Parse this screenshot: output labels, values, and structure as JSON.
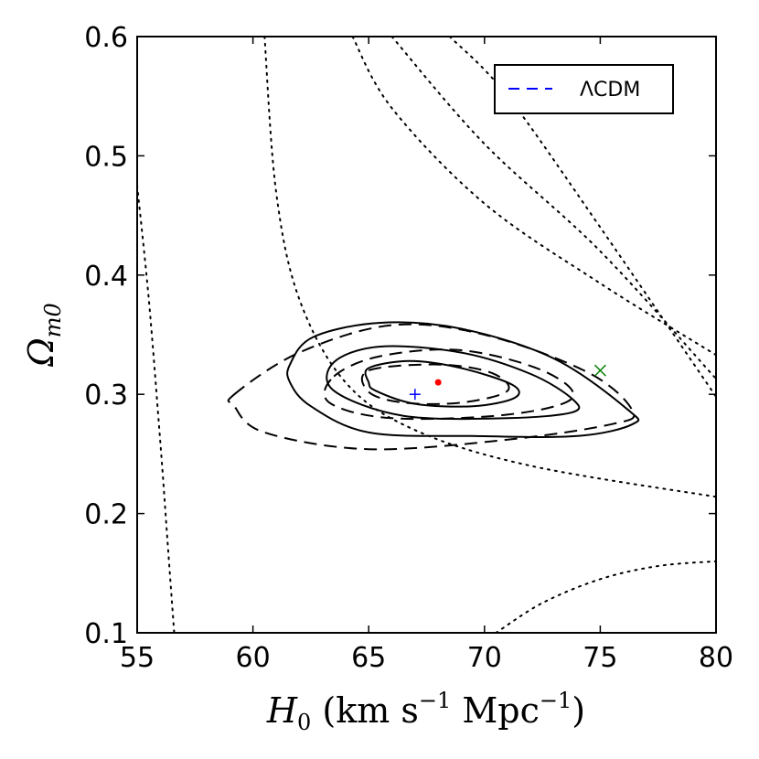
{
  "chart_data": {
    "type": "contour",
    "title": "",
    "xlabel": "H₀ (km s⁻¹ Mpc⁻¹)",
    "ylabel": "Ωₘ₀",
    "xlabel_main": "H",
    "xlabel_sub": "0",
    "xlabel_units": " (km s",
    "xlabel_exp1": "−1",
    "xlabel_mid": " Mpc",
    "xlabel_exp2": "−1",
    "xlabel_close": ")",
    "ylabel_main": "Ω",
    "ylabel_sub": "m0",
    "xlim": [
      55,
      80
    ],
    "ylim": [
      0.1,
      0.6
    ],
    "xticks": [
      55,
      60,
      65,
      70,
      75,
      80
    ],
    "yticks": [
      0.1,
      0.2,
      0.3,
      0.4,
      0.5,
      0.6
    ],
    "xtick_labels": [
      "55",
      "60",
      "65",
      "70",
      "75",
      "80"
    ],
    "ytick_labels": [
      "0.1",
      "0.2",
      "0.3",
      "0.4",
      "0.5",
      "0.6"
    ],
    "legend": {
      "position": "top-right",
      "entries": [
        {
          "label": "ΛCDM",
          "style": "dashed",
          "color": "#0000ff"
        }
      ]
    },
    "series": [
      {
        "name": "solid-1sigma",
        "style": "solid",
        "closed": true,
        "points": [
          [
            65.0,
            0.322
          ],
          [
            66.8,
            0.328
          ],
          [
            69.0,
            0.322
          ],
          [
            71.2,
            0.308
          ],
          [
            71.3,
            0.297
          ],
          [
            69.5,
            0.29
          ],
          [
            67.0,
            0.292
          ],
          [
            65.3,
            0.303
          ],
          [
            65.0,
            0.31
          ]
        ]
      },
      {
        "name": "solid-2sigma",
        "style": "solid",
        "closed": true,
        "points": [
          [
            63.5,
            0.327
          ],
          [
            65.5,
            0.34
          ],
          [
            69.0,
            0.335
          ],
          [
            72.0,
            0.317
          ],
          [
            73.8,
            0.296
          ],
          [
            73.8,
            0.285
          ],
          [
            71.0,
            0.28
          ],
          [
            66.5,
            0.282
          ],
          [
            63.5,
            0.303
          ]
        ]
      },
      {
        "name": "solid-3sigma",
        "style": "solid",
        "closed": true,
        "points": [
          [
            61.6,
            0.325
          ],
          [
            62.6,
            0.348
          ],
          [
            65.5,
            0.36
          ],
          [
            69.0,
            0.355
          ],
          [
            73.0,
            0.33
          ],
          [
            76.2,
            0.287
          ],
          [
            76.4,
            0.275
          ],
          [
            74.0,
            0.265
          ],
          [
            69.5,
            0.265
          ],
          [
            65.0,
            0.268
          ],
          [
            62.5,
            0.29
          ],
          [
            61.6,
            0.31
          ]
        ]
      },
      {
        "name": "dashed-1sigma",
        "style": "dashed",
        "closed": true,
        "points": [
          [
            65.0,
            0.32
          ],
          [
            68.0,
            0.325
          ],
          [
            70.3,
            0.318
          ],
          [
            71.0,
            0.303
          ],
          [
            69.0,
            0.293
          ],
          [
            66.5,
            0.293
          ],
          [
            65.0,
            0.302
          ]
        ]
      },
      {
        "name": "dashed-2sigma",
        "style": "dashed",
        "closed": true,
        "points": [
          [
            63.5,
            0.315
          ],
          [
            65.5,
            0.332
          ],
          [
            69.0,
            0.337
          ],
          [
            72.5,
            0.32
          ],
          [
            73.8,
            0.297
          ],
          [
            71.0,
            0.283
          ],
          [
            66.0,
            0.28
          ],
          [
            63.3,
            0.293
          ]
        ]
      },
      {
        "name": "dashed-3sigma",
        "style": "dashed",
        "closed": true,
        "points": [
          [
            59.2,
            0.3
          ],
          [
            62.0,
            0.335
          ],
          [
            66.0,
            0.358
          ],
          [
            70.0,
            0.35
          ],
          [
            74.5,
            0.318
          ],
          [
            76.4,
            0.286
          ],
          [
            75.5,
            0.275
          ],
          [
            71.0,
            0.262
          ],
          [
            65.0,
            0.254
          ],
          [
            60.5,
            0.268
          ],
          [
            59.2,
            0.29
          ]
        ]
      },
      {
        "name": "dotted-1",
        "style": "dotted",
        "closed": false,
        "points": [
          [
            55.0,
            0.475
          ],
          [
            55.5,
            0.38
          ],
          [
            56.0,
            0.26
          ],
          [
            56.3,
            0.18
          ],
          [
            56.6,
            0.1
          ]
        ]
      },
      {
        "name": "dotted-2",
        "style": "dotted",
        "closed": false,
        "points": [
          [
            64.3,
            0.6
          ],
          [
            66.0,
            0.54
          ],
          [
            70.0,
            0.46
          ],
          [
            75.0,
            0.393
          ],
          [
            80.0,
            0.333
          ]
        ]
      },
      {
        "name": "dotted-3",
        "style": "dotted",
        "closed": false,
        "points": [
          [
            66.0,
            0.6
          ],
          [
            70.0,
            0.51
          ],
          [
            75.0,
            0.42
          ],
          [
            80.0,
            0.313
          ]
        ]
      },
      {
        "name": "dotted-4",
        "style": "dotted",
        "closed": false,
        "points": [
          [
            68.5,
            0.6
          ],
          [
            71.0,
            0.55
          ],
          [
            75.0,
            0.44
          ],
          [
            80.0,
            0.298
          ]
        ]
      },
      {
        "name": "dotted-5",
        "style": "dotted",
        "closed": false,
        "points": [
          [
            60.5,
            0.6
          ],
          [
            61.0,
            0.47
          ],
          [
            62.0,
            0.38
          ],
          [
            64.0,
            0.31
          ],
          [
            67.0,
            0.27
          ],
          [
            72.0,
            0.24
          ],
          [
            80.0,
            0.214
          ]
        ]
      },
      {
        "name": "dotted-6",
        "style": "dotted",
        "closed": false,
        "points": [
          [
            70.5,
            0.1
          ],
          [
            72.5,
            0.125
          ],
          [
            75.0,
            0.145
          ],
          [
            77.5,
            0.156
          ],
          [
            80.0,
            0.16
          ]
        ]
      }
    ],
    "markers": [
      {
        "name": "lcdm-best-fit",
        "symbol": "+",
        "x": 67.0,
        "y": 0.3,
        "color": "#0000ff"
      },
      {
        "name": "model-best-fit",
        "symbol": "dot",
        "x": 68.0,
        "y": 0.31,
        "color": "#ff0000"
      },
      {
        "name": "reference-point",
        "symbol": "x",
        "x": 75.0,
        "y": 0.32,
        "color": "#008000"
      }
    ]
  }
}
